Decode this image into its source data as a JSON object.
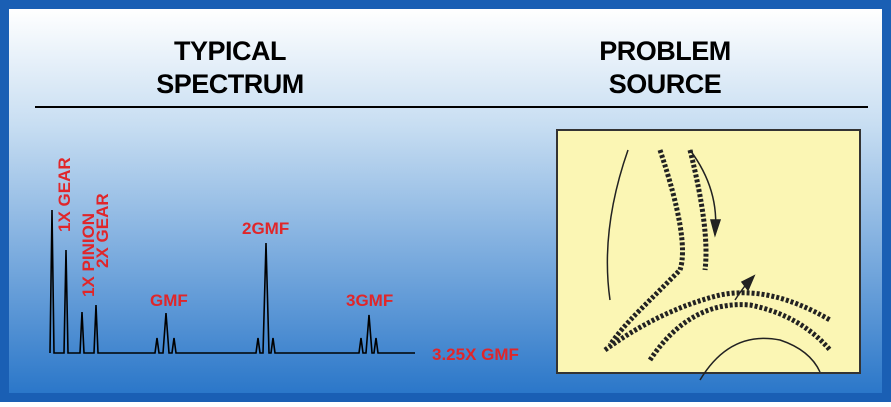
{
  "header": {
    "left_title": [
      "TYPICAL",
      "SPECTRUM"
    ],
    "right_title": [
      "PROBLEM",
      "SOURCE"
    ]
  },
  "spectrum": {
    "peak_labels": [
      "1X GEAR",
      "1X PINION",
      "2X GEAR",
      "GMF",
      "2GMF",
      "3GMF"
    ],
    "axis_label": "3.25X GMF"
  }
}
